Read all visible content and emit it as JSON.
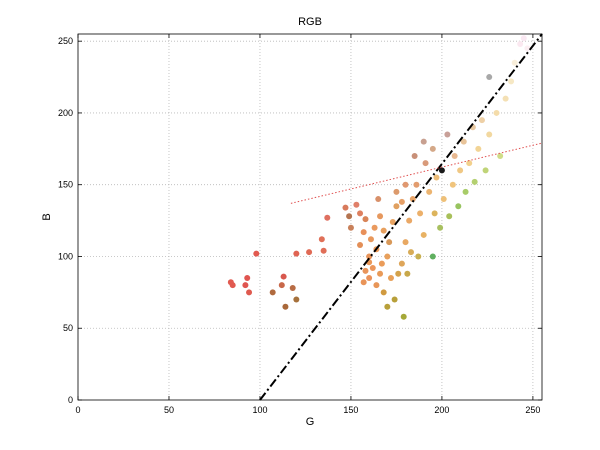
{
  "chart_data": {
    "type": "scatter",
    "title": "RGB",
    "xlabel": "G",
    "ylabel": "B",
    "xlim": [
      0,
      255
    ],
    "ylim": [
      0,
      255
    ],
    "xticks": [
      0,
      50,
      100,
      150,
      200,
      250
    ],
    "yticks": [
      0,
      50,
      100,
      150,
      200,
      250
    ],
    "grid": true,
    "points": [
      {
        "x": 84,
        "y": 82,
        "color": "#e15a50"
      },
      {
        "x": 85,
        "y": 80,
        "color": "#e15a50"
      },
      {
        "x": 92,
        "y": 80,
        "color": "#e05550"
      },
      {
        "x": 93,
        "y": 85,
        "color": "#e05550"
      },
      {
        "x": 94,
        "y": 75,
        "color": "#df5a4f"
      },
      {
        "x": 98,
        "y": 102,
        "color": "#e25a50"
      },
      {
        "x": 107,
        "y": 75,
        "color": "#b06a3e"
      },
      {
        "x": 112,
        "y": 80,
        "color": "#c8684a"
      },
      {
        "x": 113,
        "y": 86,
        "color": "#d8584e"
      },
      {
        "x": 114,
        "y": 65,
        "color": "#a9683a"
      },
      {
        "x": 118,
        "y": 78,
        "color": "#b86c44"
      },
      {
        "x": 120,
        "y": 70,
        "color": "#a6713c"
      },
      {
        "x": 120,
        "y": 102,
        "color": "#e06453"
      },
      {
        "x": 127,
        "y": 103,
        "color": "#e06a55"
      },
      {
        "x": 134,
        "y": 112,
        "color": "#e07058"
      },
      {
        "x": 135,
        "y": 104,
        "color": "#e06e58"
      },
      {
        "x": 137,
        "y": 127,
        "color": "#df7060"
      },
      {
        "x": 147,
        "y": 134,
        "color": "#d87a5c"
      },
      {
        "x": 149,
        "y": 128,
        "color": "#b47450"
      },
      {
        "x": 150,
        "y": 120,
        "color": "#c8805a"
      },
      {
        "x": 153,
        "y": 136,
        "color": "#e0806a"
      },
      {
        "x": 155,
        "y": 130,
        "color": "#de8060"
      },
      {
        "x": 155,
        "y": 108,
        "color": "#e38f58"
      },
      {
        "x": 157,
        "y": 117,
        "color": "#e8905a"
      },
      {
        "x": 158,
        "y": 126,
        "color": "#d88458"
      },
      {
        "x": 160,
        "y": 100,
        "color": "#e8945a"
      },
      {
        "x": 161,
        "y": 112,
        "color": "#e8985c"
      },
      {
        "x": 163,
        "y": 120,
        "color": "#ea9a5e"
      },
      {
        "x": 164,
        "y": 105,
        "color": "#ec9a5a"
      },
      {
        "x": 166,
        "y": 128,
        "color": "#e6985e"
      },
      {
        "x": 168,
        "y": 118,
        "color": "#e8a05e"
      },
      {
        "x": 170,
        "y": 100,
        "color": "#e8a05c"
      },
      {
        "x": 171,
        "y": 110,
        "color": "#d89858"
      },
      {
        "x": 173,
        "y": 124,
        "color": "#e9a462"
      },
      {
        "x": 175,
        "y": 135,
        "color": "#e0a060"
      },
      {
        "x": 158,
        "y": 90,
        "color": "#e8945a"
      },
      {
        "x": 160,
        "y": 85,
        "color": "#ea925a"
      },
      {
        "x": 162,
        "y": 92,
        "color": "#ec965a"
      },
      {
        "x": 164,
        "y": 80,
        "color": "#e89658"
      },
      {
        "x": 166,
        "y": 88,
        "color": "#e99a58"
      },
      {
        "x": 168,
        "y": 75,
        "color": "#d09a40"
      },
      {
        "x": 170,
        "y": 65,
        "color": "#b8a03a"
      },
      {
        "x": 172,
        "y": 85,
        "color": "#e8a058"
      },
      {
        "x": 174,
        "y": 70,
        "color": "#b8a03a"
      },
      {
        "x": 176,
        "y": 88,
        "color": "#d4a24a"
      },
      {
        "x": 179,
        "y": 58,
        "color": "#a5a838"
      },
      {
        "x": 178,
        "y": 95,
        "color": "#dea65a"
      },
      {
        "x": 180,
        "y": 110,
        "color": "#e8a862"
      },
      {
        "x": 182,
        "y": 125,
        "color": "#eaa866"
      },
      {
        "x": 184,
        "y": 140,
        "color": "#e8a468"
      },
      {
        "x": 186,
        "y": 150,
        "color": "#e29c6e"
      },
      {
        "x": 187,
        "y": 100,
        "color": "#c8b050"
      },
      {
        "x": 188,
        "y": 130,
        "color": "#ecb06a"
      },
      {
        "x": 190,
        "y": 115,
        "color": "#e8b264"
      },
      {
        "x": 191,
        "y": 165,
        "color": "#d89a7a"
      },
      {
        "x": 193,
        "y": 145,
        "color": "#ecb470"
      },
      {
        "x": 195,
        "y": 100,
        "color": "#60b060"
      },
      {
        "x": 196,
        "y": 130,
        "color": "#dcb45c"
      },
      {
        "x": 197,
        "y": 155,
        "color": "#ecbc78"
      },
      {
        "x": 199,
        "y": 120,
        "color": "#a8c060"
      },
      {
        "x": 200,
        "y": 160,
        "color": "#1a1a1a"
      },
      {
        "x": 201,
        "y": 140,
        "color": "#eec078"
      },
      {
        "x": 203,
        "y": 185,
        "color": "#c8a098"
      },
      {
        "x": 204,
        "y": 128,
        "color": "#a8c05a"
      },
      {
        "x": 206,
        "y": 150,
        "color": "#f0c47c"
      },
      {
        "x": 207,
        "y": 170,
        "color": "#e8b890"
      },
      {
        "x": 209,
        "y": 135,
        "color": "#98c460"
      },
      {
        "x": 210,
        "y": 160,
        "color": "#f0c884"
      },
      {
        "x": 212,
        "y": 180,
        "color": "#e8c49a"
      },
      {
        "x": 213,
        "y": 145,
        "color": "#a8cc68"
      },
      {
        "x": 215,
        "y": 165,
        "color": "#f2d08c"
      },
      {
        "x": 217,
        "y": 190,
        "color": "#e8c8a0"
      },
      {
        "x": 218,
        "y": 152,
        "color": "#b4d070"
      },
      {
        "x": 220,
        "y": 175,
        "color": "#f2d496"
      },
      {
        "x": 222,
        "y": 195,
        "color": "#eed0a6"
      },
      {
        "x": 224,
        "y": 160,
        "color": "#c0d478"
      },
      {
        "x": 226,
        "y": 185,
        "color": "#f2d8a0"
      },
      {
        "x": 226,
        "y": 225,
        "color": "#a8a8a8"
      },
      {
        "x": 230,
        "y": 200,
        "color": "#f4dcaa"
      },
      {
        "x": 232,
        "y": 170,
        "color": "#d0dc88"
      },
      {
        "x": 235,
        "y": 210,
        "color": "#f4e0b4"
      },
      {
        "x": 238,
        "y": 222,
        "color": "#f6e8c4"
      },
      {
        "x": 240,
        "y": 235,
        "color": "#f8eeda"
      },
      {
        "x": 243,
        "y": 248,
        "color": "#fbe8f0"
      },
      {
        "x": 245,
        "y": 252,
        "color": "#fae8f2"
      },
      {
        "x": 247,
        "y": 245,
        "color": "#fbeef2"
      },
      {
        "x": 180,
        "y": 150,
        "color": "#e09870"
      },
      {
        "x": 175,
        "y": 145,
        "color": "#dc9a6c"
      },
      {
        "x": 178,
        "y": 138,
        "color": "#e6a068"
      },
      {
        "x": 165,
        "y": 140,
        "color": "#d8906a"
      },
      {
        "x": 185,
        "y": 170,
        "color": "#c89078"
      },
      {
        "x": 190,
        "y": 180,
        "color": "#c8a090"
      },
      {
        "x": 195,
        "y": 175,
        "color": "#d4a888"
      },
      {
        "x": 160,
        "y": 96,
        "color": "#eb9858"
      },
      {
        "x": 167,
        "y": 95,
        "color": "#ea9c5a"
      },
      {
        "x": 157,
        "y": 82,
        "color": "#e99458"
      },
      {
        "x": 181,
        "y": 88,
        "color": "#c8a84a"
      },
      {
        "x": 183,
        "y": 103,
        "color": "#d8ac58"
      }
    ],
    "annotations": [
      {
        "type": "line",
        "style": "dash-dot",
        "color": "#000000",
        "from": {
          "x": 100,
          "y": 0
        },
        "to": {
          "x": 255,
          "y": 255
        }
      },
      {
        "type": "line",
        "style": "dotted",
        "color": "#e05050",
        "from": {
          "x": 117,
          "y": 137
        },
        "to": {
          "x": 255,
          "y": 179
        }
      }
    ]
  }
}
